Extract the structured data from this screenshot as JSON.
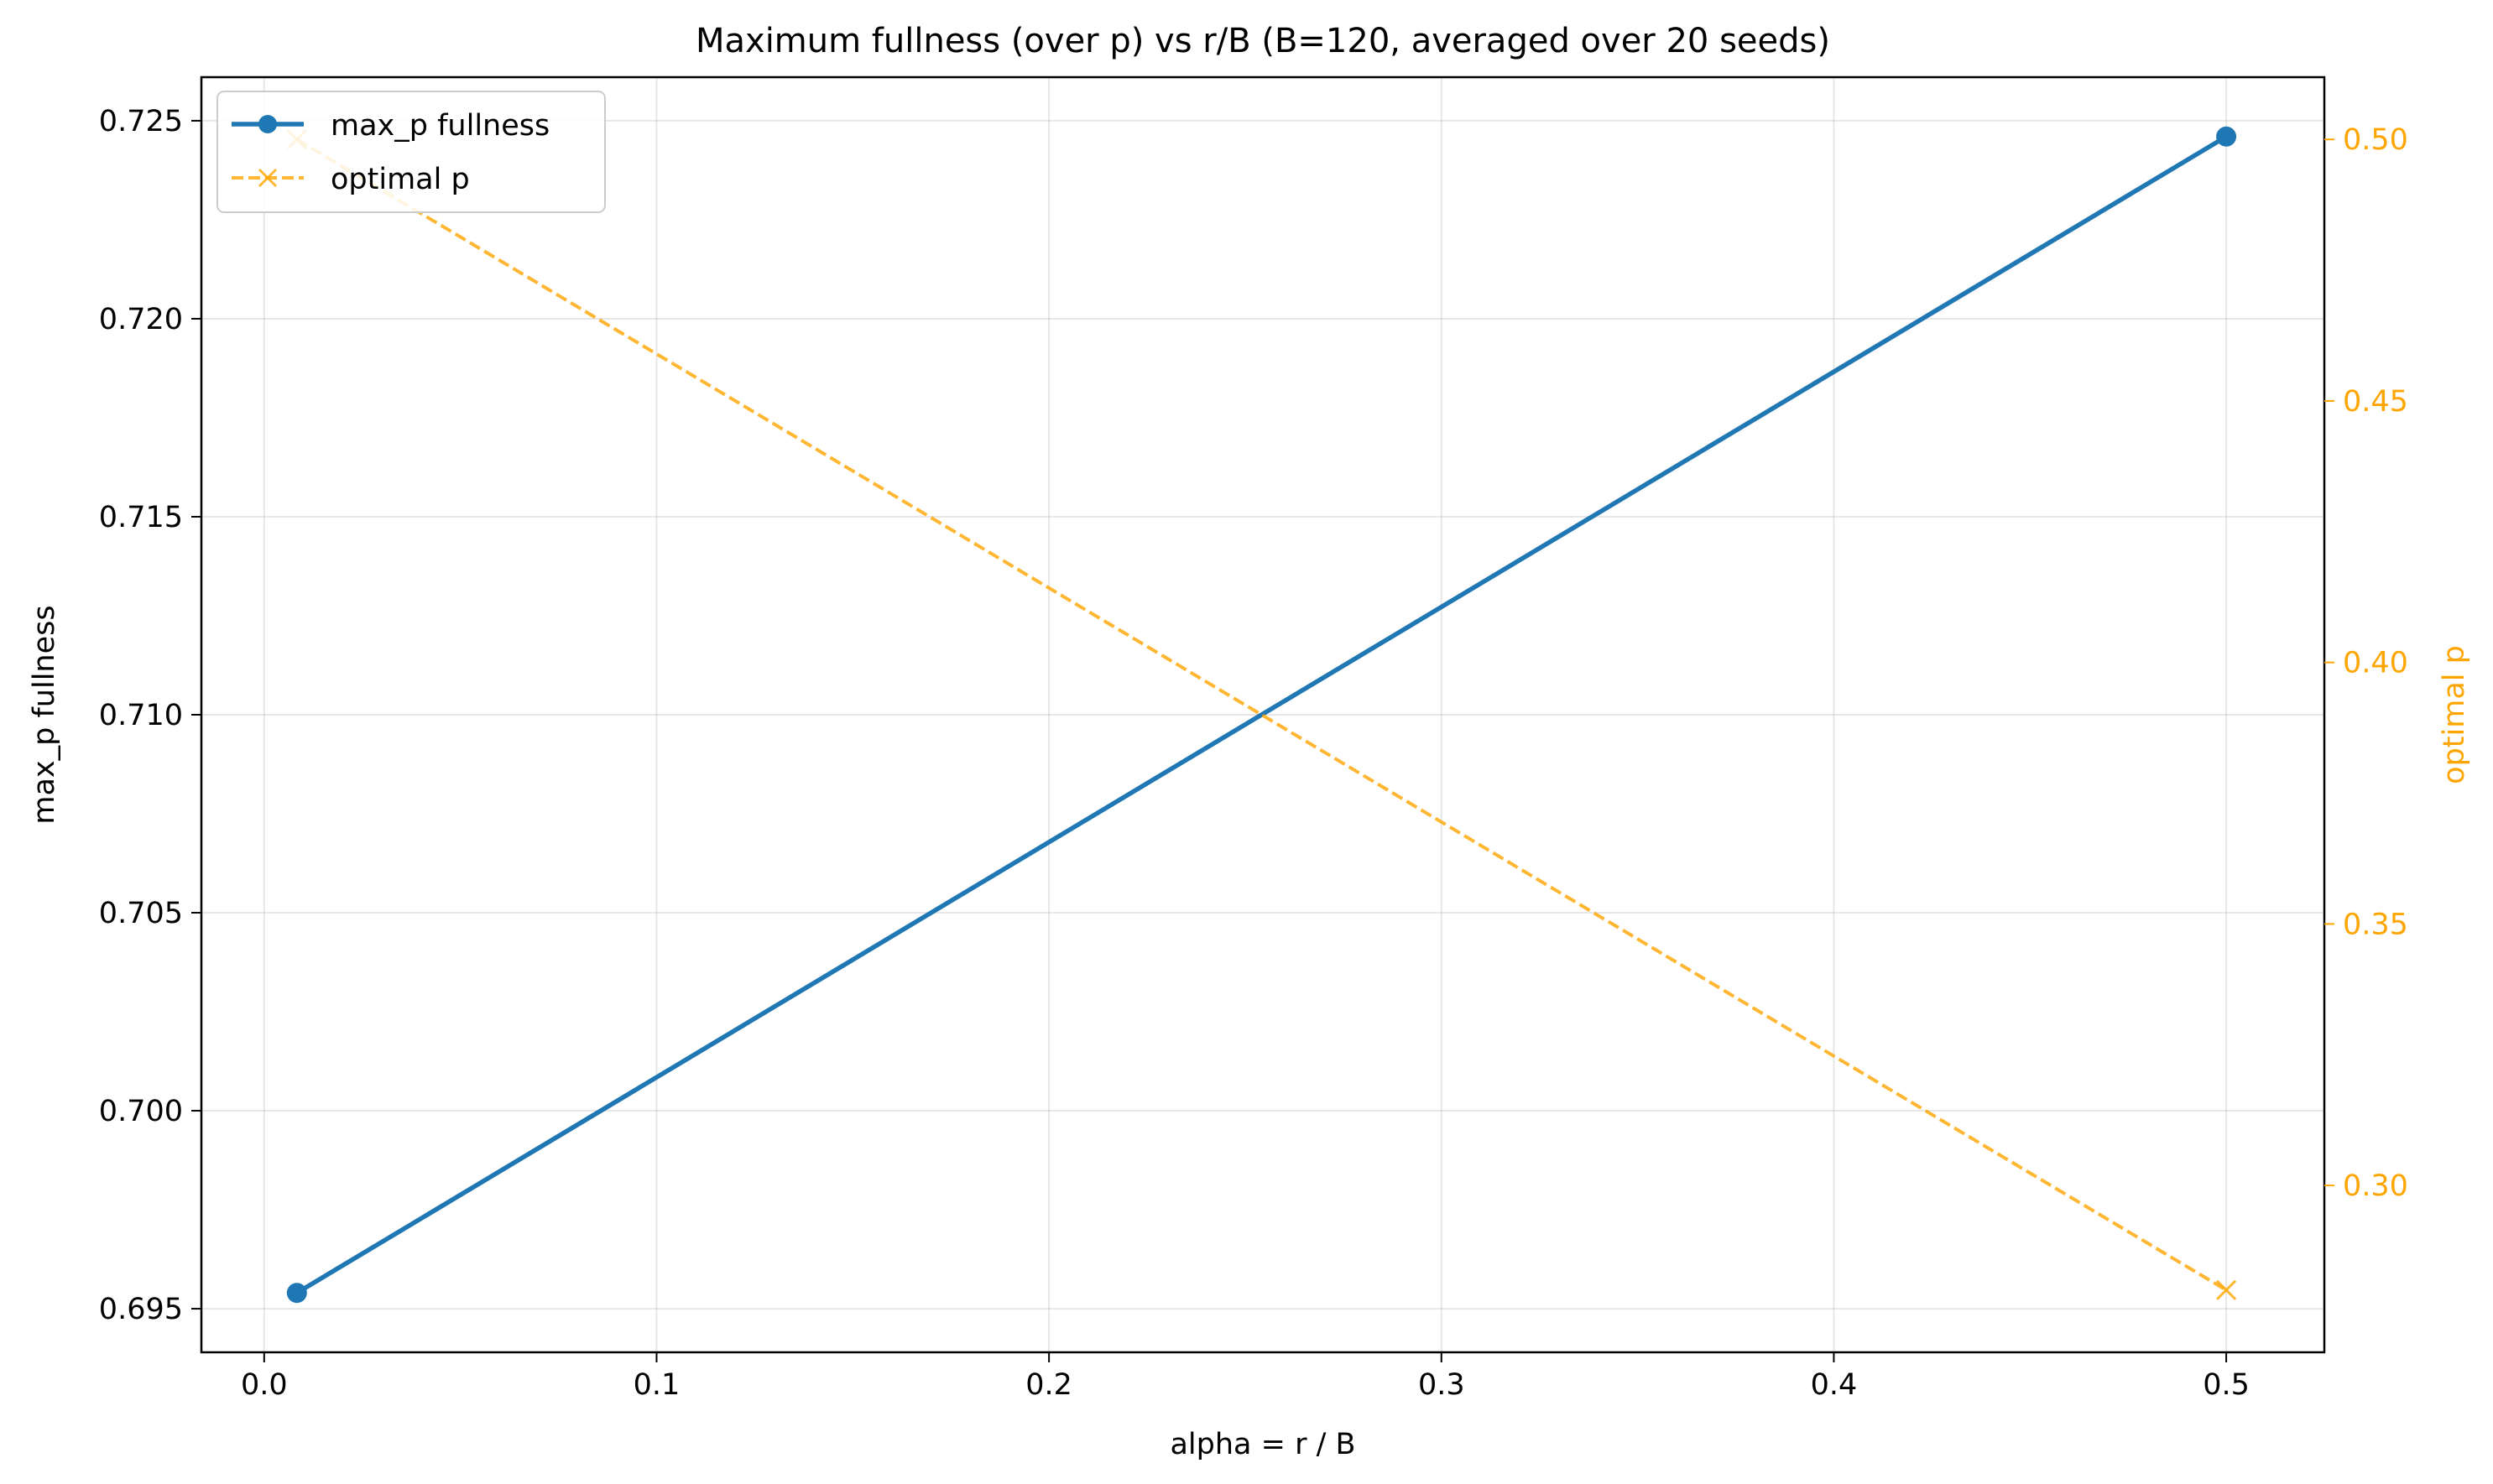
{
  "chart_data": {
    "type": "line",
    "title": "Maximum fullness (over p) vs r/B (B=120, averaged over 20 seeds)",
    "xlabel": "alpha = r / B",
    "ylabel": "max_p fullness",
    "y2label": "optimal p",
    "xlim": [
      -0.016,
      0.525
    ],
    "ylim": [
      0.6939,
      0.7261
    ],
    "y2lim": [
      0.2681,
      0.5119
    ],
    "x_ticks": [
      "0.0",
      "0.1",
      "0.2",
      "0.3",
      "0.4",
      "0.5"
    ],
    "x_tick_values": [
      0.0,
      0.1,
      0.2,
      0.3,
      0.4,
      0.5
    ],
    "y_ticks": [
      "0.695",
      "0.700",
      "0.705",
      "0.710",
      "0.715",
      "0.720",
      "0.725"
    ],
    "y_tick_values": [
      0.695,
      0.7,
      0.705,
      0.71,
      0.715,
      0.72,
      0.725
    ],
    "y2_ticks": [
      "0.30",
      "0.35",
      "0.40",
      "0.45",
      "0.50"
    ],
    "y2_tick_values": [
      0.3,
      0.35,
      0.4,
      0.45,
      0.5
    ],
    "grid": true,
    "legend_position": "top-left",
    "series": [
      {
        "name": "max_p fullness",
        "axis": "left",
        "x": [
          0.008333,
          0.5
        ],
        "values": [
          0.6954,
          0.7246
        ],
        "color": "#1f77b4",
        "line_style": "solid",
        "marker": "circle"
      },
      {
        "name": "optimal p",
        "axis": "right",
        "x": [
          0.008333,
          0.5
        ],
        "values": [
          0.5,
          0.28
        ],
        "color": "#ffa500",
        "line_style": "dashed",
        "marker": "x"
      }
    ]
  }
}
